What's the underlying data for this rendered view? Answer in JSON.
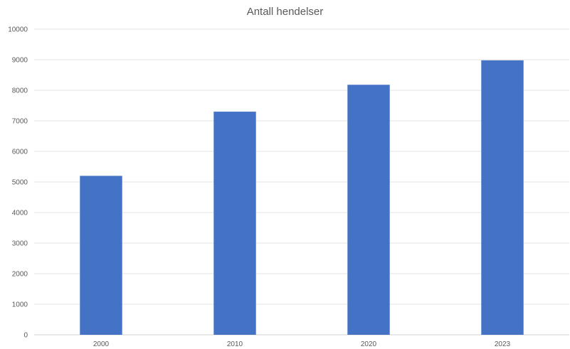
{
  "chart_data": {
    "type": "bar",
    "title": "Antall hendelser",
    "categories": [
      "2000",
      "2010",
      "2020",
      "2023"
    ],
    "values": [
      5200,
      7300,
      8180,
      8980
    ],
    "ylim": [
      0,
      10000
    ],
    "yticks": [
      0,
      1000,
      2000,
      3000,
      4000,
      5000,
      6000,
      7000,
      8000,
      9000,
      10000
    ],
    "xlabel": "",
    "ylabel": "",
    "grid": "horizontal",
    "legend": "none",
    "bar_color": "#4472C4"
  }
}
